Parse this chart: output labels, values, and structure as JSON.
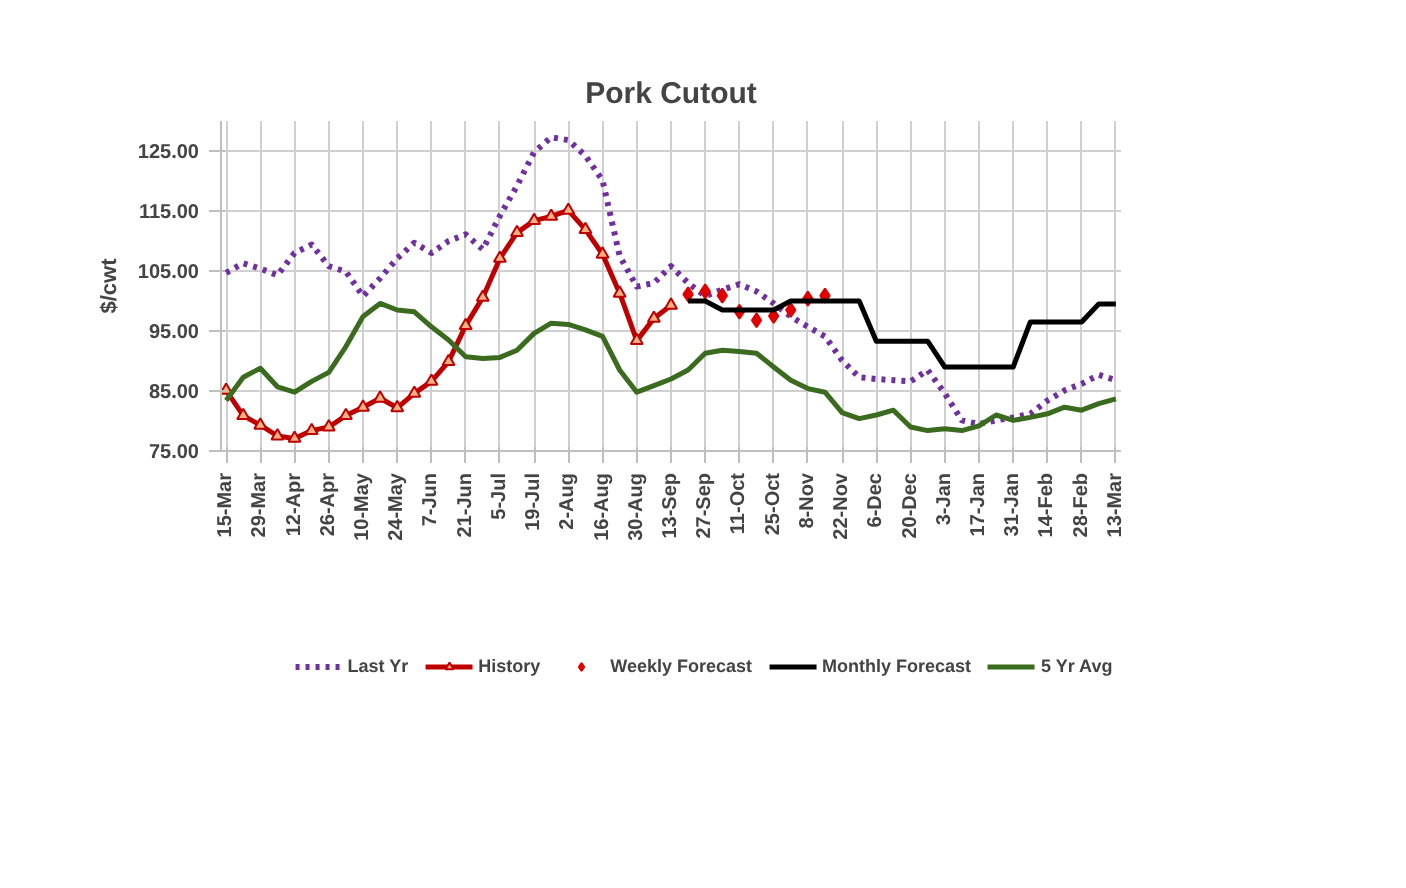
{
  "chart_data": {
    "type": "line",
    "title": "Pork Cutout",
    "ylabel": "$/cwt",
    "categories": [
      "15-Mar",
      null,
      "29-Mar",
      null,
      "12-Apr",
      null,
      "26-Apr",
      null,
      "10-May",
      null,
      "24-May",
      null,
      "7-Jun",
      null,
      "21-Jun",
      null,
      "5-Jul",
      null,
      "19-Jul",
      null,
      "2-Aug",
      null,
      "16-Aug",
      null,
      "30-Aug",
      null,
      "13-Sep",
      null,
      "27-Sep",
      null,
      "11-Oct",
      null,
      "25-Oct",
      null,
      "8-Nov",
      null,
      "22-Nov",
      null,
      "6-Dec",
      null,
      "20-Dec",
      null,
      "3-Jan",
      null,
      "17-Jan",
      null,
      "31-Jan",
      null,
      "14-Feb",
      null,
      "28-Feb",
      null,
      "13-Mar"
    ],
    "ylim": [
      75,
      130
    ],
    "yticks": [
      {
        "value": 75,
        "label": "75.00"
      },
      {
        "value": 85,
        "label": "85.00"
      },
      {
        "value": 95,
        "label": "95.00"
      },
      {
        "value": 105,
        "label": "105.00"
      },
      {
        "value": 115,
        "label": "115.00"
      },
      {
        "value": 125,
        "label": "125.00"
      }
    ],
    "grid": true,
    "legend": "bottom",
    "series": [
      {
        "name": "Last Yr",
        "color": "#7030a0",
        "line_style": "dotted",
        "marker": "none",
        "values": [
          104.7,
          106.3,
          105.4,
          104.3,
          108.0,
          109.4,
          105.8,
          104.9,
          100.8,
          103.8,
          107.1,
          109.7,
          108.0,
          110.0,
          111.1,
          108.6,
          114.2,
          119.2,
          124.8,
          127.3,
          126.8,
          124.2,
          120.1,
          107.5,
          102.4,
          103.0,
          105.8,
          103.0,
          100.8,
          101.9,
          102.8,
          101.6,
          99.6,
          97.4,
          95.7,
          94.1,
          90.1,
          87.3,
          87.0,
          86.8,
          86.6,
          88.5,
          84.6,
          80.1,
          79.5,
          80.1,
          80.6,
          81.2,
          83.4,
          85.1,
          86.2,
          87.7,
          86.8
        ]
      },
      {
        "name": "History",
        "color": "#c00000",
        "line_style": "solid",
        "marker": "triangle",
        "values": [
          85.1,
          80.9,
          79.3,
          77.5,
          77.1,
          78.4,
          79.0,
          80.9,
          82.3,
          83.8,
          82.2,
          84.6,
          86.6,
          89.9,
          95.9,
          100.6,
          107.1,
          111.4,
          113.4,
          114.1,
          115.1,
          111.9,
          107.8,
          101.3,
          93.4,
          97.1,
          99.3,
          null,
          null,
          null,
          null,
          null,
          null,
          null,
          null,
          null,
          null,
          null,
          null,
          null,
          null,
          null,
          null,
          null,
          null,
          null,
          null,
          null,
          null,
          null,
          null,
          null,
          null
        ]
      },
      {
        "name": "Weekly Forecast",
        "color": "#e00000",
        "type": "scatter",
        "marker": "diamond",
        "values": [
          null,
          null,
          null,
          null,
          null,
          null,
          null,
          null,
          null,
          null,
          null,
          null,
          null,
          null,
          null,
          null,
          null,
          null,
          null,
          null,
          null,
          null,
          null,
          null,
          null,
          null,
          null,
          101.1,
          101.6,
          100.9,
          98.2,
          96.8,
          97.5,
          98.5,
          100.4,
          100.9,
          null,
          null,
          null,
          null,
          null,
          null,
          null,
          null,
          null,
          null,
          null,
          null,
          null,
          null,
          null,
          null,
          null
        ]
      },
      {
        "name": "Monthly Forecast",
        "color": "#000000",
        "line_style": "solid",
        "marker": "none",
        "values": [
          null,
          null,
          null,
          null,
          null,
          null,
          null,
          null,
          null,
          null,
          null,
          null,
          null,
          null,
          null,
          null,
          null,
          null,
          null,
          null,
          null,
          null,
          null,
          null,
          null,
          null,
          null,
          100.0,
          100.0,
          98.5,
          98.5,
          98.5,
          98.5,
          100.0,
          100.0,
          100.0,
          100.0,
          100.0,
          93.3,
          93.3,
          93.3,
          93.3,
          89.0,
          89.0,
          89.0,
          89.0,
          89.0,
          96.5,
          96.5,
          96.5,
          96.5,
          99.5,
          99.5
        ]
      },
      {
        "name": "5 Yr Avg",
        "color": "#3a6b1f",
        "line_style": "solid",
        "marker": "none",
        "values": [
          83.4,
          87.3,
          88.8,
          85.7,
          84.8,
          86.6,
          88.1,
          92.4,
          97.4,
          99.6,
          98.5,
          98.2,
          95.7,
          93.5,
          90.7,
          90.4,
          90.6,
          91.8,
          94.6,
          96.3,
          96.1,
          95.2,
          94.1,
          88.5,
          84.8,
          85.9,
          87.0,
          88.5,
          91.3,
          91.8,
          91.6,
          91.3,
          89.0,
          86.8,
          85.4,
          84.8,
          81.4,
          80.4,
          81.0,
          81.8,
          79.0,
          78.4,
          78.7,
          78.4,
          79.2,
          81.0,
          80.1,
          80.6,
          81.2,
          82.3,
          81.8,
          82.9,
          83.7
        ]
      }
    ]
  }
}
